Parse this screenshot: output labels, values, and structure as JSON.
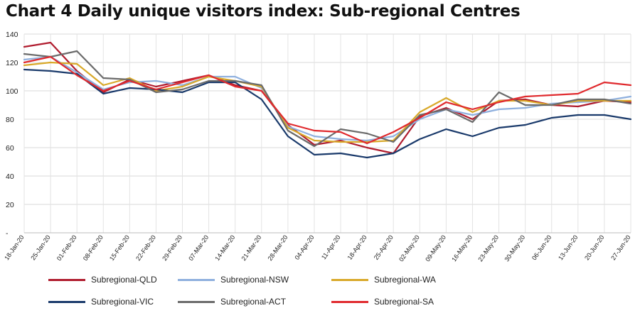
{
  "chart_data": {
    "type": "line",
    "title": "Chart 4 Daily unique visitors index: Sub-regional Centres",
    "xlabel": "",
    "ylabel": "",
    "ylim": [
      0,
      140
    ],
    "yticks": [
      "-",
      "20",
      "40",
      "60",
      "80",
      "100",
      "120",
      "140"
    ],
    "grid": true,
    "legend_position": "bottom",
    "categories": [
      "18-Jan-20",
      "25-Jan-20",
      "01-Feb-20",
      "08-Feb-20",
      "15-Feb-20",
      "22-Feb-20",
      "29-Feb-20",
      "07-Mar-20",
      "14-Mar-20",
      "21-Mar-20",
      "28-Mar-20",
      "04-Apr-20",
      "11-Apr-20",
      "18-Apr-20",
      "25-Apr-20",
      "02-May-20",
      "09-May-20",
      "16-May-20",
      "23-May-20",
      "30-May-20",
      "06-Jun-20",
      "13-Jun-20",
      "20-Jun-20",
      "27-Jun-20"
    ],
    "series": [
      {
        "name": "Subregional-QLD",
        "color": "#b01c2e",
        "values": [
          131,
          134,
          114,
          99,
          108,
          103,
          107,
          111,
          104,
          100,
          76,
          62,
          65,
          60,
          56,
          82,
          88,
          80,
          93,
          94,
          90,
          89,
          93,
          92
        ]
      },
      {
        "name": "Subregional-NSW",
        "color": "#8fb0de",
        "values": [
          122,
          124,
          113,
          101,
          106,
          107,
          104,
          110,
          110,
          102,
          75,
          68,
          66,
          65,
          68,
          80,
          87,
          83,
          87,
          88,
          91,
          92,
          93,
          96
        ]
      },
      {
        "name": "Subregional-WA",
        "color": "#d9a92a",
        "values": [
          118,
          120,
          119,
          104,
          109,
          100,
          103,
          110,
          107,
          103,
          74,
          65,
          64,
          64,
          65,
          85,
          95,
          85,
          93,
          93,
          90,
          93,
          93,
          93
        ]
      },
      {
        "name": "Subregional-VIC",
        "color": "#1a3a6b",
        "values": [
          115,
          114,
          112,
          98,
          102,
          101,
          99,
          106,
          106,
          94,
          68,
          55,
          56,
          53,
          56,
          66,
          73,
          68,
          74,
          76,
          81,
          83,
          83,
          80
        ]
      },
      {
        "name": "Subregional-ACT",
        "color": "#6b6b6b",
        "values": [
          126,
          124,
          128,
          109,
          108,
          99,
          101,
          107,
          107,
          104,
          72,
          61,
          73,
          70,
          64,
          83,
          87,
          78,
          99,
          90,
          90,
          94,
          94,
          91
        ]
      },
      {
        "name": "Subregional-SA",
        "color": "#e02a2e",
        "values": [
          120,
          124,
          111,
          100,
          107,
          101,
          106,
          111,
          103,
          100,
          77,
          72,
          71,
          63,
          71,
          81,
          92,
          87,
          92,
          96,
          97,
          98,
          106,
          104
        ]
      }
    ]
  }
}
